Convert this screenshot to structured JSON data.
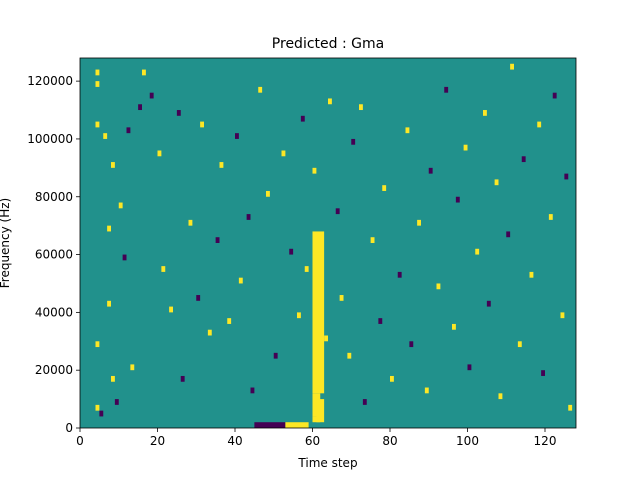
{
  "chart_data": {
    "type": "heatmap",
    "title": "Predicted : Gma",
    "xlabel": "Time step",
    "ylabel": "Frequency (Hz)",
    "xlim": [
      0,
      128
    ],
    "ylim": [
      0,
      128000
    ],
    "x_ticks": [
      0,
      20,
      40,
      60,
      80,
      100,
      120
    ],
    "x_tick_labels": [
      "0",
      "20",
      "40",
      "60",
      "80",
      "100",
      "120"
    ],
    "y_ticks": [
      0,
      20000,
      40000,
      60000,
      80000,
      100000,
      120000
    ],
    "y_tick_labels": [
      "0",
      "20000",
      "40000",
      "60000",
      "80000",
      "100000",
      "120000"
    ],
    "grid": false,
    "n_time_steps": 128,
    "n_frequency_bins": 64,
    "colors": {
      "background": "#21918c",
      "low": "#440154",
      "high": "#fde725"
    },
    "cells": [
      {
        "t": 4,
        "bin": 61,
        "level": "high"
      },
      {
        "t": 4,
        "bin": 59,
        "level": "high"
      },
      {
        "t": 4,
        "bin": 52,
        "level": "high"
      },
      {
        "t": 4,
        "bin": 14,
        "level": "high"
      },
      {
        "t": 4,
        "bin": 3,
        "level": "high"
      },
      {
        "t": 5,
        "bin": 2,
        "level": "low"
      },
      {
        "t": 6,
        "bin": 50,
        "level": "high"
      },
      {
        "t": 7,
        "bin": 34,
        "level": "high"
      },
      {
        "t": 7,
        "bin": 21,
        "level": "high"
      },
      {
        "t": 8,
        "bin": 45,
        "level": "high"
      },
      {
        "t": 8,
        "bin": 8,
        "level": "high"
      },
      {
        "t": 9,
        "bin": 4,
        "level": "low"
      },
      {
        "t": 10,
        "bin": 38,
        "level": "high"
      },
      {
        "t": 11,
        "bin": 29,
        "level": "low"
      },
      {
        "t": 12,
        "bin": 51,
        "level": "low"
      },
      {
        "t": 13,
        "bin": 10,
        "level": "high"
      },
      {
        "t": 15,
        "bin": 55,
        "level": "low"
      },
      {
        "t": 16,
        "bin": 61,
        "level": "high"
      },
      {
        "t": 18,
        "bin": 57,
        "level": "low"
      },
      {
        "t": 20,
        "bin": 47,
        "level": "high"
      },
      {
        "t": 21,
        "bin": 27,
        "level": "high"
      },
      {
        "t": 23,
        "bin": 20,
        "level": "high"
      },
      {
        "t": 25,
        "bin": 54,
        "level": "low"
      },
      {
        "t": 26,
        "bin": 8,
        "level": "low"
      },
      {
        "t": 28,
        "bin": 35,
        "level": "high"
      },
      {
        "t": 30,
        "bin": 22,
        "level": "low"
      },
      {
        "t": 31,
        "bin": 52,
        "level": "high"
      },
      {
        "t": 33,
        "bin": 16,
        "level": "high"
      },
      {
        "t": 35,
        "bin": 32,
        "level": "low"
      },
      {
        "t": 36,
        "bin": 45,
        "level": "high"
      },
      {
        "t": 38,
        "bin": 18,
        "level": "high"
      },
      {
        "t": 40,
        "bin": 50,
        "level": "low"
      },
      {
        "t": 41,
        "bin": 25,
        "level": "high"
      },
      {
        "t": 43,
        "bin": 36,
        "level": "low"
      },
      {
        "t": 44,
        "bin": 6,
        "level": "low"
      },
      {
        "t": 46,
        "bin": 58,
        "level": "high"
      },
      {
        "t": 48,
        "bin": 40,
        "level": "high"
      },
      {
        "t": 50,
        "bin": 12,
        "level": "low"
      },
      {
        "t": 52,
        "bin": 47,
        "level": "high"
      },
      {
        "t": 54,
        "bin": 30,
        "level": "low"
      },
      {
        "t": 56,
        "bin": 19,
        "level": "high"
      },
      {
        "t": 57,
        "bin": 53,
        "level": "low"
      },
      {
        "t": 58,
        "bin": 27,
        "level": "high"
      },
      {
        "t": 60,
        "bin": 44,
        "level": "high"
      },
      {
        "t": 61,
        "bin": 29,
        "level": "low"
      },
      {
        "t": 63,
        "bin": 15,
        "level": "high"
      },
      {
        "t": 64,
        "bin": 56,
        "level": "high"
      },
      {
        "t": 66,
        "bin": 37,
        "level": "low"
      },
      {
        "t": 67,
        "bin": 22,
        "level": "high"
      },
      {
        "t": 69,
        "bin": 12,
        "level": "high"
      },
      {
        "t": 70,
        "bin": 49,
        "level": "low"
      },
      {
        "t": 72,
        "bin": 55,
        "level": "high"
      },
      {
        "t": 73,
        "bin": 4,
        "level": "low"
      },
      {
        "t": 75,
        "bin": 32,
        "level": "high"
      },
      {
        "t": 77,
        "bin": 18,
        "level": "low"
      },
      {
        "t": 78,
        "bin": 41,
        "level": "high"
      },
      {
        "t": 80,
        "bin": 8,
        "level": "high"
      },
      {
        "t": 82,
        "bin": 26,
        "level": "low"
      },
      {
        "t": 84,
        "bin": 51,
        "level": "high"
      },
      {
        "t": 85,
        "bin": 14,
        "level": "low"
      },
      {
        "t": 87,
        "bin": 35,
        "level": "high"
      },
      {
        "t": 89,
        "bin": 6,
        "level": "high"
      },
      {
        "t": 90,
        "bin": 44,
        "level": "low"
      },
      {
        "t": 92,
        "bin": 24,
        "level": "high"
      },
      {
        "t": 94,
        "bin": 58,
        "level": "low"
      },
      {
        "t": 96,
        "bin": 17,
        "level": "high"
      },
      {
        "t": 97,
        "bin": 39,
        "level": "low"
      },
      {
        "t": 99,
        "bin": 48,
        "level": "high"
      },
      {
        "t": 100,
        "bin": 10,
        "level": "low"
      },
      {
        "t": 102,
        "bin": 30,
        "level": "high"
      },
      {
        "t": 104,
        "bin": 54,
        "level": "high"
      },
      {
        "t": 105,
        "bin": 21,
        "level": "low"
      },
      {
        "t": 107,
        "bin": 42,
        "level": "high"
      },
      {
        "t": 108,
        "bin": 5,
        "level": "high"
      },
      {
        "t": 110,
        "bin": 33,
        "level": "low"
      },
      {
        "t": 111,
        "bin": 62,
        "level": "high"
      },
      {
        "t": 113,
        "bin": 14,
        "level": "high"
      },
      {
        "t": 114,
        "bin": 46,
        "level": "low"
      },
      {
        "t": 116,
        "bin": 26,
        "level": "high"
      },
      {
        "t": 118,
        "bin": 52,
        "level": "high"
      },
      {
        "t": 119,
        "bin": 9,
        "level": "low"
      },
      {
        "t": 121,
        "bin": 36,
        "level": "high"
      },
      {
        "t": 122,
        "bin": 57,
        "level": "low"
      },
      {
        "t": 124,
        "bin": 19,
        "level": "high"
      },
      {
        "t": 125,
        "bin": 43,
        "level": "low"
      },
      {
        "t": 126,
        "bin": 3,
        "level": "high"
      }
    ],
    "blocks": [
      {
        "t0": 45,
        "t1": 53,
        "bin0": 0,
        "bin1": 0,
        "level": "low"
      },
      {
        "t0": 53,
        "t1": 59,
        "bin0": 0,
        "bin1": 0,
        "level": "high"
      },
      {
        "t0": 60,
        "t1": 62,
        "bin0": 2,
        "bin1": 5,
        "level": "high"
      },
      {
        "t0": 60,
        "t1": 63,
        "bin0": 6,
        "bin1": 33,
        "level": "high"
      },
      {
        "t0": 61,
        "t1": 63,
        "bin0": 1,
        "bin1": 4,
        "level": "high"
      },
      {
        "t0": 60,
        "t1": 62,
        "bin0": 1,
        "bin1": 1,
        "level": "high"
      }
    ]
  }
}
